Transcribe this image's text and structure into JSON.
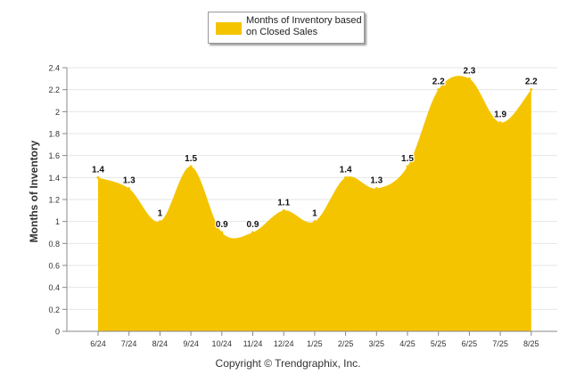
{
  "chart_data": {
    "type": "area",
    "categories": [
      "6/24",
      "7/24",
      "8/24",
      "9/24",
      "10/24",
      "11/24",
      "12/24",
      "1/25",
      "2/25",
      "3/25",
      "4/25",
      "5/25",
      "6/25",
      "7/25",
      "8/25"
    ],
    "series": [
      {
        "name": "Months of Inventory based on Closed Sales",
        "values": [
          1.4,
          1.3,
          1,
          1.5,
          0.9,
          0.9,
          1.1,
          1,
          1.4,
          1.3,
          1.5,
          2.2,
          2.3,
          1.9,
          2.2
        ],
        "labels": [
          "1.4",
          "1.3",
          "1",
          "1.5",
          "0.9",
          "0.9",
          "1.1",
          "1",
          "1.4",
          "1.3",
          "1.5",
          "2.2",
          "2.3",
          "1.9",
          "2.2"
        ]
      }
    ],
    "ylabel": "Months of Inventory",
    "xlabel": "",
    "ylim": [
      0,
      2.4
    ],
    "yticks": [
      "0",
      "0.2",
      "0.4",
      "0.6",
      "0.8",
      "1",
      "1.2",
      "1.4",
      "1.6",
      "1.8",
      "2",
      "2.2",
      "2.4"
    ],
    "grid": true,
    "legend_position": "top-center"
  },
  "legend": {
    "label": "Months of Inventory based on Closed Sales",
    "color": "#F5C400"
  },
  "footer": {
    "copyright": "Copyright © Trendgraphix, Inc."
  },
  "colors": {
    "area_fill": "#F5C400",
    "grid": "#e6e6e6",
    "axis": "#888888"
  }
}
